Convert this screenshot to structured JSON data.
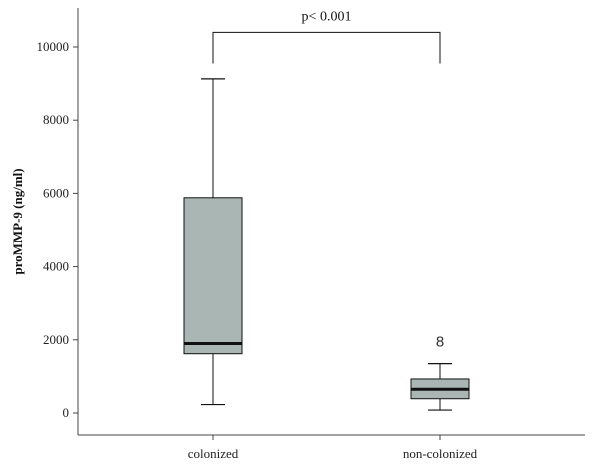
{
  "chart_data": {
    "type": "box",
    "title": "",
    "xlabel": "",
    "ylabel": "proMMP-9 (ng/ml)",
    "ylim": [
      -500,
      10600
    ],
    "yticks": [
      0,
      2000,
      4000,
      6000,
      8000,
      10000
    ],
    "categories": [
      "colonized",
      "non-colonized"
    ],
    "boxes": [
      {
        "category": "colonized",
        "whisker_low": 230,
        "q1": 1620,
        "median": 1900,
        "q3": 5880,
        "whisker_high": 9130,
        "outliers": []
      },
      {
        "category": "non-colonized",
        "whisker_low": 80,
        "q1": 390,
        "median": 650,
        "q3": 930,
        "whisker_high": 1350,
        "outliers": [
          {
            "label": "8",
            "value": 1950
          }
        ]
      }
    ],
    "annotation": {
      "text": "p< 0.001",
      "bracket_y": 10400,
      "left_end_y": 9550,
      "right_end_y": 9550
    },
    "colors": {
      "box_fill": "#a9b6b4",
      "line": "#111111",
      "axis": "#444444"
    },
    "grid": false,
    "legend": "none"
  }
}
